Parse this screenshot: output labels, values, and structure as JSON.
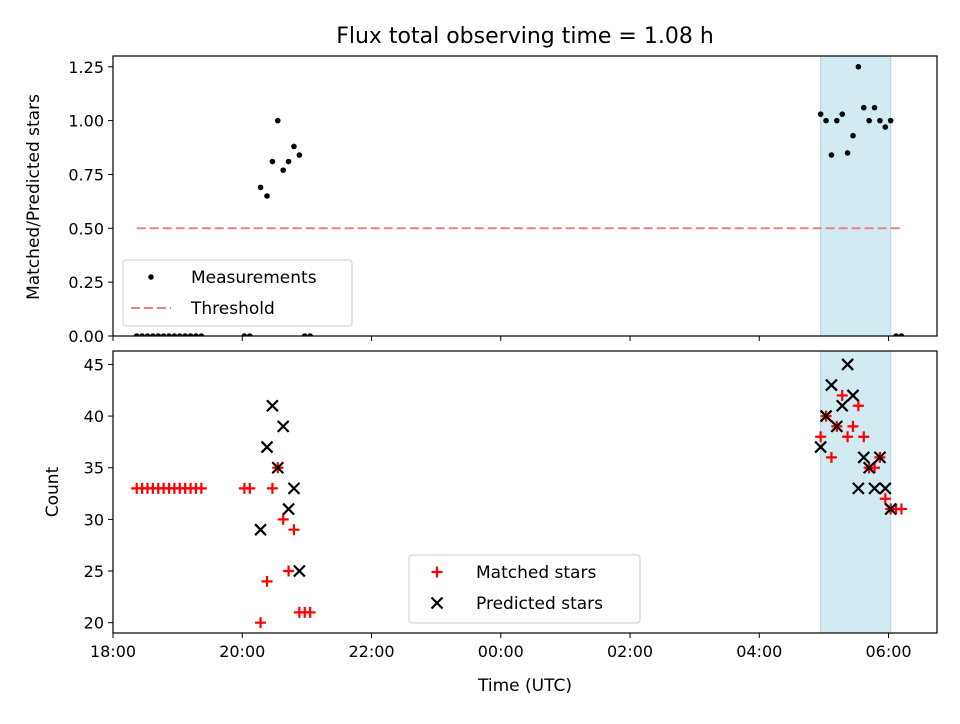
{
  "figure": {
    "title": "Flux total observing time = 1.08 h"
  },
  "chart_data": [
    {
      "type": "scatter",
      "ylabel": "Matched/Predicted stars",
      "xlabel": "",
      "xlim": [
        "18:00",
        "06:45"
      ],
      "ylim": [
        0,
        1.3
      ],
      "y_ticks": [
        "0.00",
        "0.25",
        "0.50",
        "0.75",
        "1.00",
        "1.25"
      ],
      "x_ticks": [
        "18:00",
        "20:00",
        "22:00",
        "00:00",
        "02:00",
        "04:00",
        "06:00"
      ],
      "shaded_interval": {
        "start": "04:57",
        "end": "06:02",
        "color": "#add8e6"
      },
      "legend_position": "lower-left",
      "series": [
        {
          "name": "Measurements",
          "marker": "dot",
          "color": "#000000",
          "points": [
            [
              "18:22",
              0
            ],
            [
              "18:27",
              0
            ],
            [
              "18:32",
              0
            ],
            [
              "18:37",
              0
            ],
            [
              "18:42",
              0
            ],
            [
              "18:47",
              0
            ],
            [
              "18:52",
              0
            ],
            [
              "18:57",
              0
            ],
            [
              "19:02",
              0
            ],
            [
              "19:07",
              0
            ],
            [
              "19:12",
              0
            ],
            [
              "19:17",
              0
            ],
            [
              "19:22",
              0
            ],
            [
              "20:02",
              0
            ],
            [
              "20:07",
              0
            ],
            [
              "20:17",
              0.69
            ],
            [
              "20:23",
              0.65
            ],
            [
              "20:28",
              0.81
            ],
            [
              "20:33",
              1.0
            ],
            [
              "20:38",
              0.77
            ],
            [
              "20:43",
              0.81
            ],
            [
              "20:48",
              0.88
            ],
            [
              "20:53",
              0.84
            ],
            [
              "20:58",
              0
            ],
            [
              "21:03",
              0
            ],
            [
              "04:57",
              1.03
            ],
            [
              "05:02",
              1.0
            ],
            [
              "05:07",
              0.84
            ],
            [
              "05:12",
              1.0
            ],
            [
              "05:17",
              1.03
            ],
            [
              "05:22",
              0.85
            ],
            [
              "05:27",
              0.93
            ],
            [
              "05:32",
              1.25
            ],
            [
              "05:37",
              1.06
            ],
            [
              "05:42",
              1.0
            ],
            [
              "05:47",
              1.06
            ],
            [
              "05:52",
              1.0
            ],
            [
              "05:57",
              0.97
            ],
            [
              "06:02",
              1.0
            ],
            [
              "06:07",
              0
            ],
            [
              "06:12",
              0
            ]
          ]
        },
        {
          "name": "Threshold",
          "type": "line",
          "style": "dashed",
          "color": "#f08080",
          "points": [
            [
              "18:22",
              0.5
            ],
            [
              "06:12",
              0.5
            ]
          ]
        }
      ]
    },
    {
      "type": "scatter",
      "xlabel": "Time (UTC)",
      "ylabel": "Count",
      "xlim": [
        "18:00",
        "06:45"
      ],
      "ylim": [
        19,
        46.3
      ],
      "y_ticks": [
        "20",
        "25",
        "30",
        "35",
        "40",
        "45"
      ],
      "x_ticks": [
        "18:00",
        "20:00",
        "22:00",
        "00:00",
        "02:00",
        "04:00",
        "06:00"
      ],
      "shaded_interval": {
        "start": "04:57",
        "end": "06:02",
        "color": "#add8e6"
      },
      "legend_position": "lower-center",
      "series": [
        {
          "name": "Matched stars",
          "marker": "plus",
          "color": "#ff0000",
          "points": [
            [
              "18:22",
              33
            ],
            [
              "18:27",
              33
            ],
            [
              "18:32",
              33
            ],
            [
              "18:37",
              33
            ],
            [
              "18:42",
              33
            ],
            [
              "18:47",
              33
            ],
            [
              "18:52",
              33
            ],
            [
              "18:57",
              33
            ],
            [
              "19:02",
              33
            ],
            [
              "19:07",
              33
            ],
            [
              "19:12",
              33
            ],
            [
              "19:17",
              33
            ],
            [
              "19:22",
              33
            ],
            [
              "20:02",
              33
            ],
            [
              "20:07",
              33
            ],
            [
              "20:17",
              20
            ],
            [
              "20:23",
              24
            ],
            [
              "20:28",
              33
            ],
            [
              "20:33",
              35
            ],
            [
              "20:38",
              30
            ],
            [
              "20:43",
              25
            ],
            [
              "20:48",
              29
            ],
            [
              "20:53",
              21
            ],
            [
              "20:58",
              21
            ],
            [
              "21:03",
              21
            ],
            [
              "04:57",
              38
            ],
            [
              "05:02",
              40
            ],
            [
              "05:07",
              36
            ],
            [
              "05:12",
              39
            ],
            [
              "05:17",
              42
            ],
            [
              "05:22",
              38
            ],
            [
              "05:27",
              39
            ],
            [
              "05:32",
              41
            ],
            [
              "05:37",
              38
            ],
            [
              "05:42",
              35
            ],
            [
              "05:47",
              35
            ],
            [
              "05:52",
              36
            ],
            [
              "05:57",
              32
            ],
            [
              "06:02",
              31
            ],
            [
              "06:07",
              31
            ],
            [
              "06:12",
              31
            ]
          ]
        },
        {
          "name": "Predicted stars",
          "marker": "x",
          "color": "#000000",
          "points": [
            [
              "20:17",
              29
            ],
            [
              "20:23",
              37
            ],
            [
              "20:28",
              41
            ],
            [
              "20:33",
              35
            ],
            [
              "20:38",
              39
            ],
            [
              "20:43",
              31
            ],
            [
              "20:48",
              33
            ],
            [
              "20:53",
              25
            ],
            [
              "04:57",
              37
            ],
            [
              "05:02",
              40
            ],
            [
              "05:07",
              43
            ],
            [
              "05:12",
              39
            ],
            [
              "05:17",
              41
            ],
            [
              "05:22",
              45
            ],
            [
              "05:27",
              42
            ],
            [
              "05:32",
              33
            ],
            [
              "05:37",
              36
            ],
            [
              "05:42",
              35
            ],
            [
              "05:47",
              33
            ],
            [
              "05:52",
              36
            ],
            [
              "05:57",
              33
            ],
            [
              "06:02",
              31
            ]
          ]
        }
      ]
    }
  ]
}
